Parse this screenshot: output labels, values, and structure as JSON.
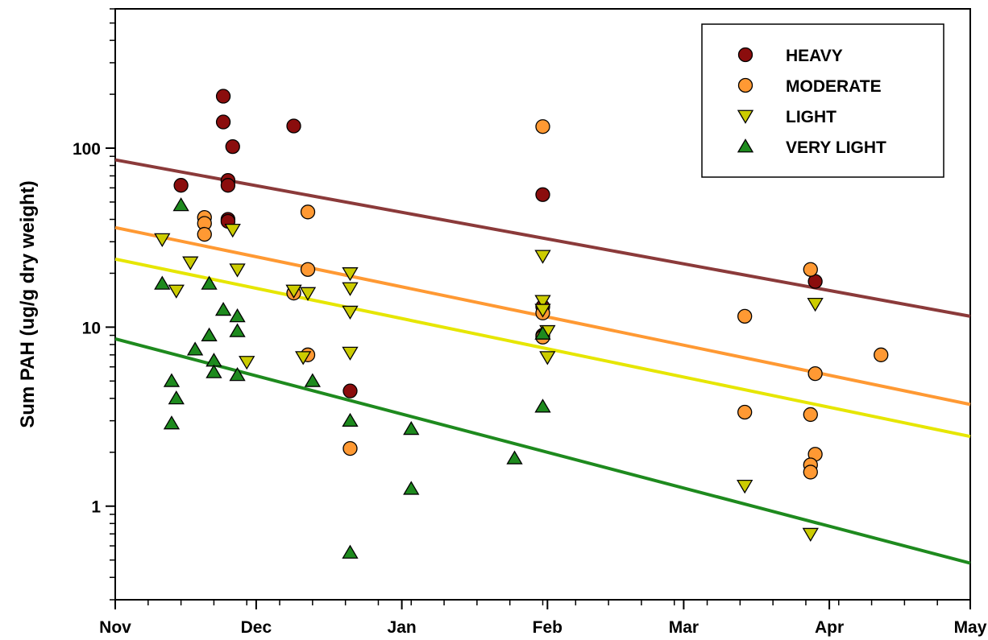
{
  "chart_data": {
    "type": "scatter",
    "title": "",
    "xlabel": "",
    "ylabel": "Sum PAH (ug/g dry weight)",
    "y_scale": "log",
    "ylim": [
      0.3,
      600
    ],
    "xlim": [
      "2007-11-01",
      "2008-05-01"
    ],
    "x_tick_labels": [
      "Nov",
      "Dec",
      "Jan",
      "Feb",
      "Mar",
      "Apr",
      "May"
    ],
    "x_ticks": [
      "2007-11-01",
      "2007-12-01",
      "2008-01-01",
      "2008-02-01",
      "2008-03-01",
      "2008-04-01",
      "2008-05-01"
    ],
    "y_tick_labels": [
      "1",
      "10",
      "100"
    ],
    "y_ticks": [
      1,
      10,
      100
    ],
    "grid": false,
    "legend_position": "top-right",
    "series": [
      {
        "name": "HEAVY",
        "marker": "circle",
        "color": "#8b0d0d",
        "points": [
          {
            "x": "2007-11-15",
            "y": 62
          },
          {
            "x": "2007-11-24",
            "y": 195
          },
          {
            "x": "2007-11-24",
            "y": 140
          },
          {
            "x": "2007-11-26",
            "y": 102
          },
          {
            "x": "2007-11-25",
            "y": 66
          },
          {
            "x": "2007-11-25",
            "y": 62
          },
          {
            "x": "2007-11-25",
            "y": 40
          },
          {
            "x": "2007-11-25",
            "y": 39
          },
          {
            "x": "2007-12-09",
            "y": 133
          },
          {
            "x": "2007-12-21",
            "y": 4.4
          },
          {
            "x": "2008-01-31",
            "y": 55
          },
          {
            "x": "2008-01-31",
            "y": 13
          },
          {
            "x": "2008-01-31",
            "y": 9
          },
          {
            "x": "2008-03-29",
            "y": 18
          }
        ]
      },
      {
        "name": "MODERATE",
        "marker": "circle",
        "color": "#ff9933",
        "points": [
          {
            "x": "2007-11-20",
            "y": 41
          },
          {
            "x": "2007-11-20",
            "y": 38
          },
          {
            "x": "2007-11-20",
            "y": 33
          },
          {
            "x": "2007-12-09",
            "y": 15.5
          },
          {
            "x": "2007-12-12",
            "y": 44
          },
          {
            "x": "2007-12-12",
            "y": 21
          },
          {
            "x": "2007-12-12",
            "y": 7
          },
          {
            "x": "2007-12-21",
            "y": 2.1
          },
          {
            "x": "2008-01-31",
            "y": 132
          },
          {
            "x": "2008-01-31",
            "y": 12
          },
          {
            "x": "2008-01-31",
            "y": 8.8
          },
          {
            "x": "2008-03-14",
            "y": 11.5
          },
          {
            "x": "2008-03-14",
            "y": 3.35
          },
          {
            "x": "2008-03-28",
            "y": 21
          },
          {
            "x": "2008-03-29",
            "y": 5.5
          },
          {
            "x": "2008-03-28",
            "y": 3.25
          },
          {
            "x": "2008-03-29",
            "y": 1.95
          },
          {
            "x": "2008-03-28",
            "y": 1.7
          },
          {
            "x": "2008-03-28",
            "y": 1.55
          },
          {
            "x": "2008-04-12",
            "y": 7
          }
        ]
      },
      {
        "name": "LIGHT",
        "marker": "triangle-down",
        "color": "#cccc00",
        "points": [
          {
            "x": "2007-11-11",
            "y": 31
          },
          {
            "x": "2007-11-14",
            "y": 16
          },
          {
            "x": "2007-11-17",
            "y": 23
          },
          {
            "x": "2007-11-26",
            "y": 35
          },
          {
            "x": "2007-11-27",
            "y": 21
          },
          {
            "x": "2007-11-29",
            "y": 6.4
          },
          {
            "x": "2007-12-09",
            "y": 16
          },
          {
            "x": "2007-12-11",
            "y": 6.8
          },
          {
            "x": "2007-12-12",
            "y": 15.5
          },
          {
            "x": "2007-12-21",
            "y": 20
          },
          {
            "x": "2007-12-21",
            "y": 16.5
          },
          {
            "x": "2007-12-21",
            "y": 12.2
          },
          {
            "x": "2007-12-21",
            "y": 7.2
          },
          {
            "x": "2008-01-31",
            "y": 25
          },
          {
            "x": "2008-01-31",
            "y": 14
          },
          {
            "x": "2008-01-31",
            "y": 12.5
          },
          {
            "x": "2008-02-01",
            "y": 9.5
          },
          {
            "x": "2008-02-01",
            "y": 6.8
          },
          {
            "x": "2008-03-14",
            "y": 1.3
          },
          {
            "x": "2008-03-29",
            "y": 13.5
          },
          {
            "x": "2008-03-28",
            "y": 0.7
          }
        ]
      },
      {
        "name": "VERY LIGHT",
        "marker": "triangle-up",
        "color": "#1e8a1e",
        "points": [
          {
            "x": "2007-11-15",
            "y": 48
          },
          {
            "x": "2007-11-11",
            "y": 17.5
          },
          {
            "x": "2007-11-18",
            "y": 7.5
          },
          {
            "x": "2007-11-13",
            "y": 5
          },
          {
            "x": "2007-11-14",
            "y": 4
          },
          {
            "x": "2007-11-13",
            "y": 2.9
          },
          {
            "x": "2007-11-21",
            "y": 17.5
          },
          {
            "x": "2007-11-21",
            "y": 9
          },
          {
            "x": "2007-11-22",
            "y": 6.5
          },
          {
            "x": "2007-11-22",
            "y": 5.6
          },
          {
            "x": "2007-11-24",
            "y": 12.5
          },
          {
            "x": "2007-11-27",
            "y": 11.5
          },
          {
            "x": "2007-11-27",
            "y": 9.5
          },
          {
            "x": "2007-11-27",
            "y": 5.4
          },
          {
            "x": "2007-12-13",
            "y": 5
          },
          {
            "x": "2007-12-21",
            "y": 3
          },
          {
            "x": "2007-12-21",
            "y": 0.55
          },
          {
            "x": "2008-01-03",
            "y": 2.7
          },
          {
            "x": "2008-01-03",
            "y": 1.25
          },
          {
            "x": "2008-01-25",
            "y": 1.85
          },
          {
            "x": "2008-01-31",
            "y": 9.2
          },
          {
            "x": "2008-01-31",
            "y": 3.6
          }
        ]
      }
    ],
    "trend_lines": [
      {
        "name": "HEAVY",
        "color": "#8b3a3a",
        "x": [
          "2007-11-01",
          "2008-05-01"
        ],
        "y": [
          86,
          11.5
        ]
      },
      {
        "name": "MODERATE",
        "color": "#ff9933",
        "x": [
          "2007-11-01",
          "2008-05-01"
        ],
        "y": [
          36,
          3.7
        ]
      },
      {
        "name": "LIGHT",
        "color": "#e6e600",
        "x": [
          "2007-11-01",
          "2008-05-01"
        ],
        "y": [
          24,
          2.45
        ]
      },
      {
        "name": "VERY LIGHT",
        "color": "#1e8a1e",
        "x": [
          "2007-11-01",
          "2008-05-01"
        ],
        "y": [
          8.6,
          0.48
        ]
      }
    ]
  }
}
